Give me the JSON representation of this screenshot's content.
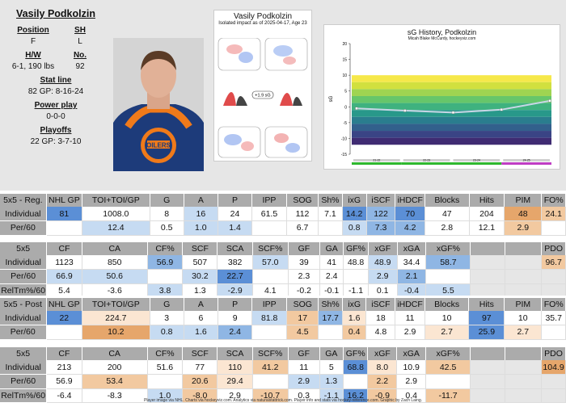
{
  "player": {
    "name": "Vasily Podkolzin",
    "position_label": "Position",
    "position": "F",
    "shoots_label": "SH",
    "shoots": "L",
    "hw_label": "H/W",
    "hw": "6-1, 190 lbs",
    "number_label": "No.",
    "number": "92",
    "statline_label": "Stat line",
    "statline": "82 GP: 8-16-24",
    "pp_label": "Power play",
    "pp": "0-0-0",
    "playoffs_label": "Playoffs",
    "playoffs": "22 GP: 3-7-10"
  },
  "impact_card": {
    "title": "Vasily Podkolzin",
    "subtitle": "Isolated impact as of 2025-04-17, Age 23",
    "sg_label": "+1.9 sG"
  },
  "sg_chart": {
    "title": "sG History, Podkolzin",
    "subtitle": "Micah Blake McCurdy, hockeyviz.com",
    "ylabel": "sG",
    "season_labels": [
      "21-22",
      "22-23",
      "23-24",
      "24-25"
    ],
    "season_colors": [
      "#2eb82e",
      "#2eb82e",
      "#2eb82e",
      "#c03dc4"
    ]
  },
  "chart_data": {
    "type": "line",
    "title": "sG History, Podkolzin",
    "subtitle": "Micah Blake McCurdy, hockeyviz.com",
    "ylabel": "sG",
    "x": [
      1,
      2,
      3,
      4,
      5
    ],
    "series": [
      {
        "values": [
          -0.5,
          -1.2,
          -1.8,
          -0.9,
          1.9
        ]
      }
    ],
    "ylim": [
      -15,
      20
    ],
    "yticks": [
      -15,
      -10,
      -5,
      0,
      5,
      10,
      15,
      20
    ]
  },
  "colors": {
    "blue_dark": "#5b8fd6",
    "blue_mid": "#8fb6e4",
    "blue_light": "#c6dbf2",
    "orange_dark": "#e6a66b",
    "orange_mid": "#f2c9a0",
    "orange_light": "#fbe6d2",
    "header": "#ababab",
    "white": "#ffffff"
  },
  "tables": [
    {
      "header": [
        "5x5 - Reg.",
        "NHL GP",
        "TOI+TOI/GP",
        "G",
        "A",
        "P",
        "IPP",
        "SOG",
        "Sh%",
        "ixG",
        "iSCF",
        "iHDCF",
        "Blocks",
        "Hits",
        "PIM",
        "FO%"
      ],
      "rows": [
        {
          "label": "Individual",
          "cells": [
            "81",
            "1008.0",
            "8",
            "16",
            "24",
            "61.5",
            "112",
            "7.1",
            "14.2",
            "122",
            "70",
            "47",
            "204",
            "48",
            "24.1"
          ],
          "colors": [
            "bd",
            "w",
            "w",
            "bl",
            "w",
            "w",
            "w",
            "w",
            "bd",
            "bm",
            "bd",
            "w",
            "w",
            "od",
            "om"
          ]
        },
        {
          "label": "Per/60",
          "cells": [
            "",
            "12.4",
            "0.5",
            "1.0",
            "1.4",
            "",
            "6.7",
            "",
            "0.8",
            "7.3",
            "4.2",
            "2.8",
            "12.1",
            "2.9",
            ""
          ],
          "colors": [
            "w",
            "bl",
            "w",
            "bl",
            "bl",
            "w",
            "w",
            "w",
            "bl",
            "bm",
            "bm",
            "w",
            "w",
            "om",
            "w"
          ]
        }
      ]
    },
    {
      "header": [
        "5x5",
        "CF",
        "CA",
        "CF%",
        "SCF",
        "SCA",
        "SCF%",
        "GF",
        "GA",
        "GF%",
        "xGF",
        "xGA",
        "xGF%",
        "",
        "",
        "PDO"
      ],
      "rows": [
        {
          "label": "Individual",
          "cells": [
            "1123",
            "850",
            "56.9",
            "507",
            "382",
            "57.0",
            "39",
            "41",
            "48.8",
            "48.9",
            "34.4",
            "58.7",
            "",
            "",
            "96.7"
          ],
          "colors": [
            "w",
            "w",
            "bm",
            "w",
            "w",
            "bl",
            "w",
            "w",
            "w",
            "bl",
            "w",
            "bm",
            "x",
            "x",
            "om"
          ]
        },
        {
          "label": "Per/60",
          "cells": [
            "66.9",
            "50.6",
            "",
            "30.2",
            "22.7",
            "",
            "2.3",
            "2.4",
            "",
            "2.9",
            "2.1",
            "",
            "",
            "",
            ""
          ],
          "colors": [
            "bl",
            "bl",
            "w",
            "bl",
            "bd",
            "w",
            "w",
            "w",
            "w",
            "bl",
            "bm",
            "w",
            "x",
            "x",
            "x"
          ]
        },
        {
          "label": "RelTm%/60",
          "cells": [
            "5.4",
            "-3.6",
            "3.8",
            "1.3",
            "-2.9",
            "4.1",
            "-0.2",
            "-0.1",
            "-1.1",
            "0.1",
            "-0.4",
            "5.5",
            "",
            "",
            ""
          ],
          "colors": [
            "w",
            "w",
            "bl",
            "w",
            "bl",
            "w",
            "w",
            "w",
            "w",
            "w",
            "bl",
            "bl",
            "x",
            "x",
            "x"
          ]
        }
      ]
    },
    {
      "header": [
        "5x5 - Post",
        "NHL GP",
        "TOI+TOI/GP",
        "G",
        "A",
        "P",
        "IPP",
        "SOG",
        "Sh%",
        "ixG",
        "iSCF",
        "iHDCF",
        "Blocks",
        "Hits",
        "PIM",
        "FO%"
      ],
      "rows": [
        {
          "label": "Individual",
          "cells": [
            "22",
            "224.7",
            "3",
            "6",
            "9",
            "81.8",
            "17",
            "17.7",
            "1.6",
            "18",
            "11",
            "10",
            "97",
            "10",
            "35.7"
          ],
          "colors": [
            "bd",
            "ol",
            "w",
            "w",
            "w",
            "bl",
            "om",
            "bm",
            "ol",
            "w",
            "w",
            "w",
            "bd",
            "w",
            "w"
          ]
        },
        {
          "label": "Per/60",
          "cells": [
            "",
            "10.2",
            "0.8",
            "1.6",
            "2.4",
            "",
            "4.5",
            "",
            "0.4",
            "4.8",
            "2.9",
            "2.7",
            "25.9",
            "2.7",
            ""
          ],
          "colors": [
            "w",
            "od",
            "bl",
            "bl",
            "bm",
            "w",
            "om",
            "w",
            "om",
            "w",
            "w",
            "ol",
            "bd",
            "ol",
            "w"
          ]
        }
      ]
    },
    {
      "header": [
        "5x5",
        "CF",
        "CA",
        "CF%",
        "SCF",
        "SCA",
        "SCF%",
        "GF",
        "GA",
        "GF%",
        "xGF",
        "xGA",
        "xGF%",
        "",
        "",
        "PDO"
      ],
      "rows": [
        {
          "label": "Individual",
          "cells": [
            "213",
            "200",
            "51.6",
            "77",
            "110",
            "41.2",
            "11",
            "5",
            "68.8",
            "8.0",
            "10.9",
            "42.5",
            "",
            "",
            "104.9"
          ],
          "colors": [
            "w",
            "w",
            "w",
            "w",
            "ol",
            "om",
            "w",
            "w",
            "bd",
            "ol",
            "w",
            "om",
            "x",
            "x",
            "od"
          ]
        },
        {
          "label": "Per/60",
          "cells": [
            "56.9",
            "53.4",
            "",
            "20.6",
            "29.4",
            "",
            "2.9",
            "1.3",
            "",
            "2.2",
            "2.9",
            "",
            "",
            "",
            ""
          ],
          "colors": [
            "w",
            "om",
            "w",
            "om",
            "ol",
            "w",
            "bl",
            "bl",
            "w",
            "om",
            "w",
            "w",
            "x",
            "x",
            "x"
          ]
        },
        {
          "label": "RelTm%/60",
          "cells": [
            "-6.4",
            "-8.3",
            "1.0",
            "-8.0",
            "2.9",
            "-10.7",
            "0.3",
            "-1.1",
            "16.2",
            "-0.9",
            "0.4",
            "-11.7",
            "",
            "",
            ""
          ],
          "colors": [
            "w",
            "w",
            "bl",
            "om",
            "w",
            "om",
            "w",
            "bl",
            "bd",
            "om",
            "w",
            "om",
            "x",
            "x",
            "x"
          ]
        }
      ]
    }
  ],
  "footer": "Player image via NHL. Charts via hockeyviz.com. Analytics via naturalstattrick.com. Player info and stats via hockey-reference.com. Graphic by Zach Laing."
}
